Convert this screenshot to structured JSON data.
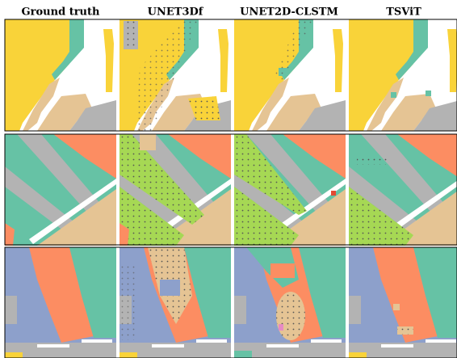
{
  "headers": [
    "Ground truth",
    "UNET3Df",
    "UNET2D-CLSTM",
    "TSViT"
  ]
}
